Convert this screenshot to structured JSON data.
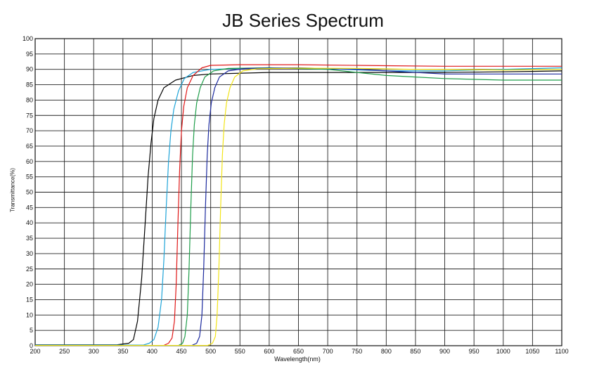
{
  "chart_data": {
    "type": "line",
    "title": "JB Series Spectrum",
    "xlabel": "Wavelength(nm)",
    "ylabel": "Transmittance(%)",
    "xlim": [
      200,
      1100
    ],
    "ylim": [
      0,
      100
    ],
    "x_ticks": [
      200,
      250,
      300,
      350,
      400,
      450,
      500,
      550,
      600,
      650,
      700,
      750,
      800,
      850,
      900,
      950,
      1000,
      1050,
      1100
    ],
    "y_ticks": [
      0,
      5,
      10,
      15,
      20,
      25,
      30,
      35,
      40,
      45,
      50,
      55,
      60,
      65,
      70,
      75,
      80,
      85,
      90,
      95,
      100
    ],
    "grid": true,
    "legend": "none",
    "series": [
      {
        "color": "#000000",
        "points": [
          [
            200,
            0.3
          ],
          [
            340,
            0.3
          ],
          [
            360,
            0.8
          ],
          [
            368,
            2
          ],
          [
            375,
            8
          ],
          [
            382,
            22
          ],
          [
            388,
            40
          ],
          [
            393,
            55
          ],
          [
            398,
            66
          ],
          [
            403,
            74
          ],
          [
            410,
            80
          ],
          [
            420,
            84
          ],
          [
            440,
            86.5
          ],
          [
            470,
            88
          ],
          [
            500,
            88.5
          ],
          [
            600,
            89
          ],
          [
            700,
            89
          ],
          [
            800,
            89
          ],
          [
            900,
            89
          ],
          [
            1000,
            89.2
          ],
          [
            1100,
            89.5
          ]
        ]
      },
      {
        "color": "#1fa4d8",
        "points": [
          [
            200,
            0.2
          ],
          [
            385,
            0.2
          ],
          [
            395,
            0.8
          ],
          [
            403,
            2
          ],
          [
            410,
            6
          ],
          [
            416,
            15
          ],
          [
            420,
            28
          ],
          [
            424,
            45
          ],
          [
            428,
            60
          ],
          [
            432,
            70
          ],
          [
            437,
            77
          ],
          [
            445,
            83
          ],
          [
            455,
            87
          ],
          [
            470,
            89
          ],
          [
            500,
            90
          ],
          [
            600,
            90.5
          ],
          [
            700,
            90.2
          ],
          [
            800,
            89.5
          ],
          [
            900,
            89.5
          ],
          [
            1000,
            90
          ],
          [
            1100,
            90.5
          ]
        ]
      },
      {
        "color": "#e01818",
        "points": [
          [
            200,
            0.1
          ],
          [
            420,
            0.1
          ],
          [
            428,
            0.8
          ],
          [
            434,
            2.5
          ],
          [
            438,
            8
          ],
          [
            441,
            20
          ],
          [
            444,
            40
          ],
          [
            447,
            58
          ],
          [
            450,
            70
          ],
          [
            454,
            78
          ],
          [
            460,
            84
          ],
          [
            470,
            88
          ],
          [
            485,
            90.5
          ],
          [
            500,
            91.3
          ],
          [
            550,
            91.5
          ],
          [
            650,
            91.5
          ],
          [
            800,
            91.2
          ],
          [
            900,
            91
          ],
          [
            1000,
            91
          ],
          [
            1100,
            91
          ]
        ]
      },
      {
        "color": "#1f9e4a",
        "points": [
          [
            200,
            0.1
          ],
          [
            445,
            0.1
          ],
          [
            452,
            0.8
          ],
          [
            456,
            3
          ],
          [
            460,
            10
          ],
          [
            463,
            25
          ],
          [
            466,
            45
          ],
          [
            469,
            62
          ],
          [
            472,
            72
          ],
          [
            476,
            79
          ],
          [
            482,
            84
          ],
          [
            490,
            87.5
          ],
          [
            505,
            89.5
          ],
          [
            530,
            90.3
          ],
          [
            600,
            90.5
          ],
          [
            700,
            90
          ],
          [
            750,
            89
          ],
          [
            800,
            88
          ],
          [
            850,
            87.5
          ],
          [
            900,
            87
          ],
          [
            1000,
            86.5
          ],
          [
            1100,
            86.5
          ]
        ]
      },
      {
        "color": "#1c2a9e",
        "points": [
          [
            200,
            0.1
          ],
          [
            468,
            0.1
          ],
          [
            476,
            0.8
          ],
          [
            481,
            3
          ],
          [
            485,
            10
          ],
          [
            488,
            25
          ],
          [
            491,
            45
          ],
          [
            494,
            62
          ],
          [
            497,
            72
          ],
          [
            501,
            79
          ],
          [
            507,
            84
          ],
          [
            515,
            87.5
          ],
          [
            530,
            89.5
          ],
          [
            560,
            90.3
          ],
          [
            650,
            90.5
          ],
          [
            750,
            90
          ],
          [
            800,
            89.5
          ],
          [
            900,
            88.5
          ],
          [
            1000,
            88.5
          ],
          [
            1100,
            88.5
          ]
        ]
      },
      {
        "color": "#f2e418",
        "points": [
          [
            200,
            0.1
          ],
          [
            495,
            0.1
          ],
          [
            503,
            0.8
          ],
          [
            508,
            3
          ],
          [
            511,
            10
          ],
          [
            514,
            25
          ],
          [
            517,
            45
          ],
          [
            520,
            62
          ],
          [
            523,
            72
          ],
          [
            527,
            79
          ],
          [
            533,
            84
          ],
          [
            541,
            87.5
          ],
          [
            555,
            89.5
          ],
          [
            580,
            90.2
          ],
          [
            650,
            90.4
          ],
          [
            750,
            90.3
          ],
          [
            850,
            90
          ],
          [
            1000,
            89.8
          ],
          [
            1100,
            90
          ]
        ]
      }
    ]
  }
}
